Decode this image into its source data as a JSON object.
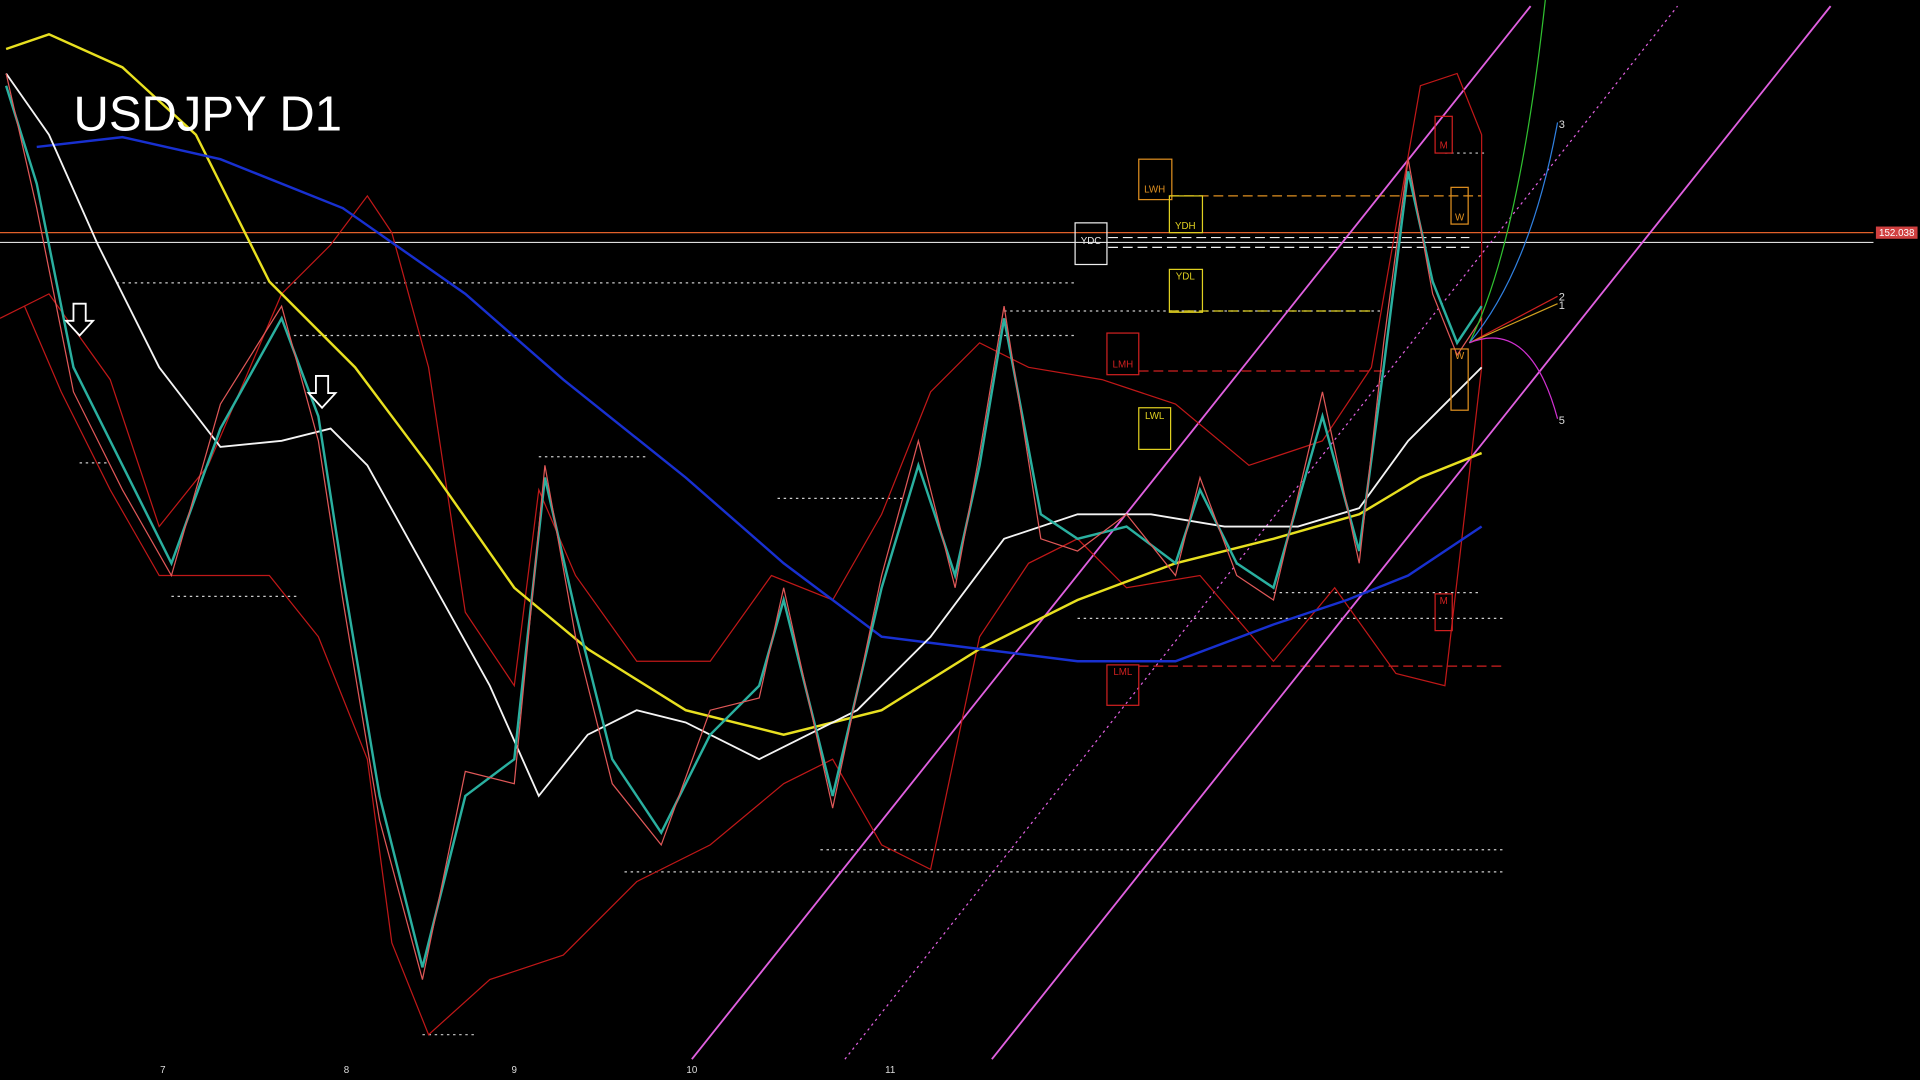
{
  "title": "USDJPY D1",
  "price_label": "152.038",
  "x_labels": [
    "7",
    "8",
    "9",
    "10",
    "11"
  ],
  "levels": {
    "lwh": "LWH",
    "ydh": "YDH",
    "ydc": "YDC",
    "ydl": "YDL",
    "lmh": "LMH",
    "lwl": "LWL",
    "lml": "LML",
    "m_top": "M",
    "m_bottom": "M",
    "w_top": "W",
    "w_bottom": "W"
  },
  "projection_labels": [
    "3",
    "2",
    "1",
    "5"
  ]
}
